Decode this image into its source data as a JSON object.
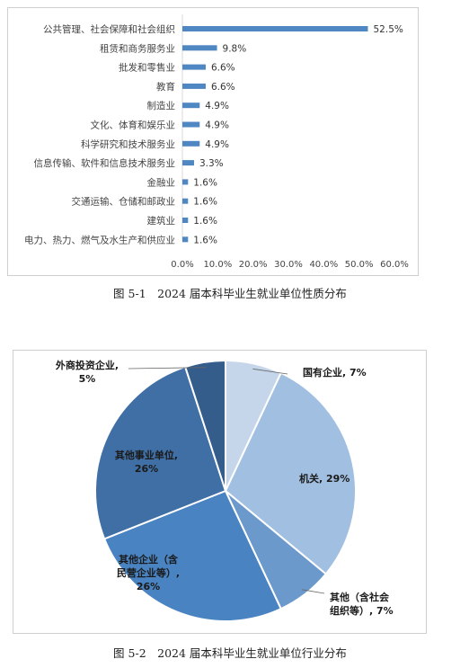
{
  "chart_data": [
    {
      "type": "bar",
      "orientation": "horizontal",
      "categories": [
        "公共管理、社会保障和社会组织",
        "租赁和商务服务业",
        "批发和零售业",
        "教育",
        "制造业",
        "文化、体育和娱乐业",
        "科学研究和技术服务业",
        "信息传输、软件和信息技术服务业",
        "金融业",
        "交通运输、仓储和邮政业",
        "建筑业",
        "电力、热力、燃气及水生产和供应业"
      ],
      "values": [
        52.5,
        9.8,
        6.6,
        6.6,
        4.9,
        4.9,
        4.9,
        3.3,
        1.6,
        1.6,
        1.6,
        1.6
      ],
      "data_labels": [
        "52.5%",
        "9.8%",
        "6.6%",
        "6.6%",
        "4.9%",
        "4.9%",
        "4.9%",
        "3.3%",
        "1.6%",
        "1.6%",
        "1.6%",
        "1.6%"
      ],
      "x_ticks": [
        "0.0%",
        "10.0%",
        "20.0%",
        "30.0%",
        "40.0%",
        "50.0%",
        "60.0%"
      ],
      "xlim": [
        0,
        60
      ],
      "grid": false,
      "color": "#4f87c2",
      "caption": "图 5-1　2024 届本科毕业生就业单位性质分布"
    },
    {
      "type": "pie",
      "slices": [
        {
          "name": "国有企业",
          "value": 7,
          "label": "国有企业, 7%",
          "color": "#c5d6ea"
        },
        {
          "name": "机关",
          "value": 29,
          "label": "机关, 29%",
          "color": "#a1bfe1"
        },
        {
          "name": "其他（含社会组织等）",
          "value": 7,
          "label": "其他（含社会组织等）, 7%",
          "color": "#6b99cc"
        },
        {
          "name": "其他企业（含民营企业等）",
          "value": 26,
          "label": "其他企业（含民营企业等）, 26%",
          "color": "#4a83c1"
        },
        {
          "name": "其他事业单位",
          "value": 26,
          "label": "其他事业单位, 26%",
          "color": "#3f6fa5"
        },
        {
          "name": "外商投资企业",
          "value": 5,
          "label": "外商投资企业, 5%",
          "color": "#345d8b"
        }
      ],
      "caption": "图 5-2　2024 届本科毕业生就业单位行业分布"
    }
  ]
}
